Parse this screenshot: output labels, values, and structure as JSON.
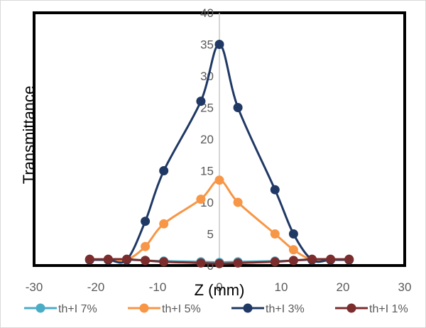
{
  "chart_data": {
    "type": "line",
    "title": "",
    "xlabel": "Z (mm)",
    "ylabel": "Transmittance",
    "xlim": [
      -30,
      30
    ],
    "ylim": [
      0,
      40
    ],
    "x_ticks": [
      -30,
      -20,
      -10,
      0,
      10,
      20,
      30
    ],
    "y_ticks": [
      5,
      10,
      15,
      20,
      25,
      30,
      35,
      40
    ],
    "y_zero_label": "0",
    "grid": false,
    "legend_position": "bottom",
    "series": [
      {
        "name": "th+I 7%",
        "color": "#4bacc6",
        "x": [
          -21,
          -18,
          -15,
          -12,
          -9,
          -3,
          0,
          3,
          9,
          12,
          15,
          18,
          21
        ],
        "y": [
          0.9,
          0.9,
          0.9,
          0.8,
          0.7,
          0.6,
          0.5,
          0.6,
          0.7,
          0.8,
          0.9,
          0.9,
          0.9
        ]
      },
      {
        "name": "th+I 5%",
        "color": "#f79646",
        "x": [
          -21,
          -18,
          -15,
          -12,
          -9,
          -3,
          0,
          3,
          9,
          12,
          15,
          18,
          21
        ],
        "y": [
          0.9,
          0.9,
          0.9,
          3.0,
          6.6,
          10.5,
          13.5,
          10.0,
          5.0,
          2.5,
          0.9,
          0.9,
          0.9
        ]
      },
      {
        "name": "th+I 3%",
        "color": "#1f3864",
        "x": [
          -21,
          -18,
          -15,
          -12,
          -9,
          -3,
          0,
          3,
          9,
          12,
          15,
          18,
          21
        ],
        "y": [
          0.9,
          0.9,
          0.9,
          7.0,
          15.0,
          26.0,
          35.0,
          25.0,
          12.0,
          5.0,
          0.9,
          0.9,
          0.9
        ]
      },
      {
        "name": "th+I 1%",
        "color": "#7b2c2c",
        "x": [
          -21,
          -18,
          -15,
          -12,
          -9,
          -3,
          0,
          3,
          9,
          12,
          15,
          18,
          21
        ],
        "y": [
          1.0,
          1.0,
          1.0,
          0.8,
          0.6,
          0.4,
          0.3,
          0.4,
          0.6,
          0.8,
          1.0,
          1.0,
          1.0
        ]
      }
    ]
  }
}
